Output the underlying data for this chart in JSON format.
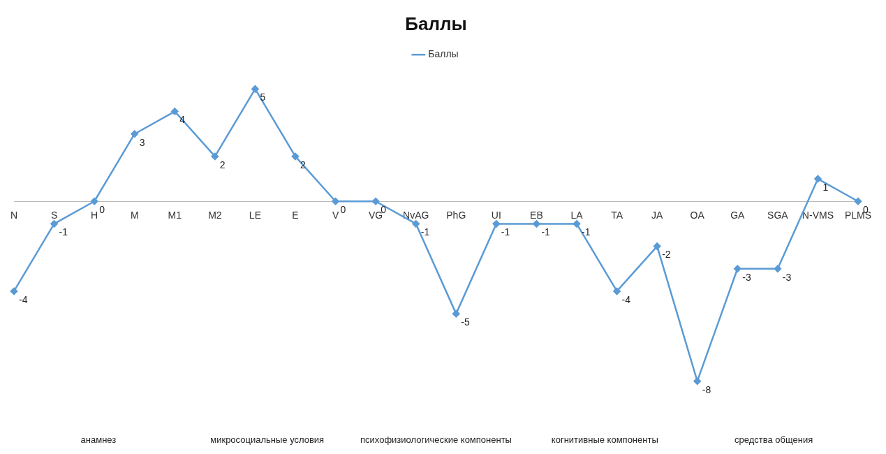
{
  "chart_data": {
    "type": "line",
    "title": "Баллы",
    "categories": [
      "N",
      "S",
      "H",
      "M",
      "M1",
      "M2",
      "LE",
      "E",
      "V",
      "VG",
      "NvAG",
      "PhG",
      "UI",
      "EB",
      "LA",
      "TA",
      "JA",
      "OA",
      "GA",
      "SGA",
      "N-VMS",
      "PLMS"
    ],
    "series": [
      {
        "name": "Баллы",
        "color": "#5b9bd5",
        "values": [
          -4,
          -1,
          0,
          3,
          4,
          2,
          5,
          2,
          0,
          0,
          -1,
          -5,
          -1,
          -1,
          -1,
          -4,
          -2,
          -8,
          -3,
          -3,
          1,
          0
        ]
      }
    ],
    "data_labels": true,
    "legend": "top",
    "marker": "diamond",
    "grid": false,
    "tick_labels": "x",
    "annotations": [
      "анамнез",
      "микросоциальные условия",
      "психофизиологические компоненты",
      "когнитивные компоненты",
      "средства общения"
    ]
  }
}
